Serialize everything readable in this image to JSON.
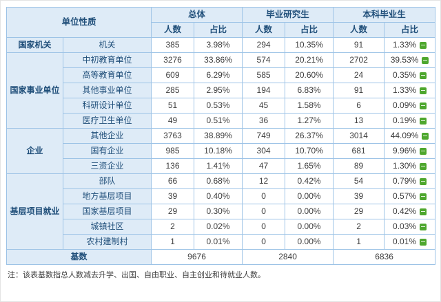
{
  "colors": {
    "header-bg": "#DEEBF7",
    "header-text": "#1F4E79",
    "border": "#9DC3E6",
    "data-text": "#3d3d3d",
    "marker-green": "#4EA72E",
    "note-text": "#404040"
  },
  "table": {
    "header": {
      "corner": "单位性质",
      "groups": [
        {
          "label": "总体",
          "sub": [
            "人数",
            "占比"
          ]
        },
        {
          "label": "毕业研究生",
          "sub": [
            "人数",
            "占比"
          ]
        },
        {
          "label": "本科毕业生",
          "sub": [
            "人数",
            "占比"
          ]
        }
      ]
    },
    "categories": [
      {
        "name": "国家机关",
        "rows": [
          {
            "label": "机关",
            "values": [
              "385",
              "3.98%",
              "294",
              "10.35%",
              "91",
              "1.33%"
            ]
          }
        ]
      },
      {
        "name": "国家事业单位",
        "rows": [
          {
            "label": "中初教育单位",
            "values": [
              "3276",
              "33.86%",
              "574",
              "20.21%",
              "2702",
              "39.53%"
            ]
          },
          {
            "label": "高等教育单位",
            "values": [
              "609",
              "6.29%",
              "585",
              "20.60%",
              "24",
              "0.35%"
            ]
          },
          {
            "label": "其他事业单位",
            "values": [
              "285",
              "2.95%",
              "194",
              "6.83%",
              "91",
              "1.33%"
            ]
          },
          {
            "label": "科研设计单位",
            "values": [
              "51",
              "0.53%",
              "45",
              "1.58%",
              "6",
              "0.09%"
            ]
          },
          {
            "label": "医疗卫生单位",
            "values": [
              "49",
              "0.51%",
              "36",
              "1.27%",
              "13",
              "0.19%"
            ]
          }
        ]
      },
      {
        "name": "企业",
        "rows": [
          {
            "label": "其他企业",
            "values": [
              "3763",
              "38.89%",
              "749",
              "26.37%",
              "3014",
              "44.09%"
            ]
          },
          {
            "label": "国有企业",
            "values": [
              "985",
              "10.18%",
              "304",
              "10.70%",
              "681",
              "9.96%"
            ]
          },
          {
            "label": "三资企业",
            "values": [
              "136",
              "1.41%",
              "47",
              "1.65%",
              "89",
              "1.30%"
            ]
          }
        ]
      },
      {
        "name": "基层项目就业",
        "rows": [
          {
            "label": "部队",
            "values": [
              "66",
              "0.68%",
              "12",
              "0.42%",
              "54",
              "0.79%"
            ]
          },
          {
            "label": "地方基层项目",
            "values": [
              "39",
              "0.40%",
              "0",
              "0.00%",
              "39",
              "0.57%"
            ]
          },
          {
            "label": "国家基层项目",
            "values": [
              "29",
              "0.30%",
              "0",
              "0.00%",
              "29",
              "0.42%"
            ]
          },
          {
            "label": "城镇社区",
            "values": [
              "2",
              "0.02%",
              "0",
              "0.00%",
              "2",
              "0.03%"
            ]
          },
          {
            "label": "农村建制村",
            "values": [
              "1",
              "0.01%",
              "0",
              "0.00%",
              "1",
              "0.01%"
            ]
          }
        ]
      }
    ],
    "footer": {
      "label": "基数",
      "values": [
        "9676",
        "2840",
        "6836"
      ]
    },
    "note": "注：该表基数指总人数减去升学、出国、自由职业、自主创业和待就业人数。"
  }
}
